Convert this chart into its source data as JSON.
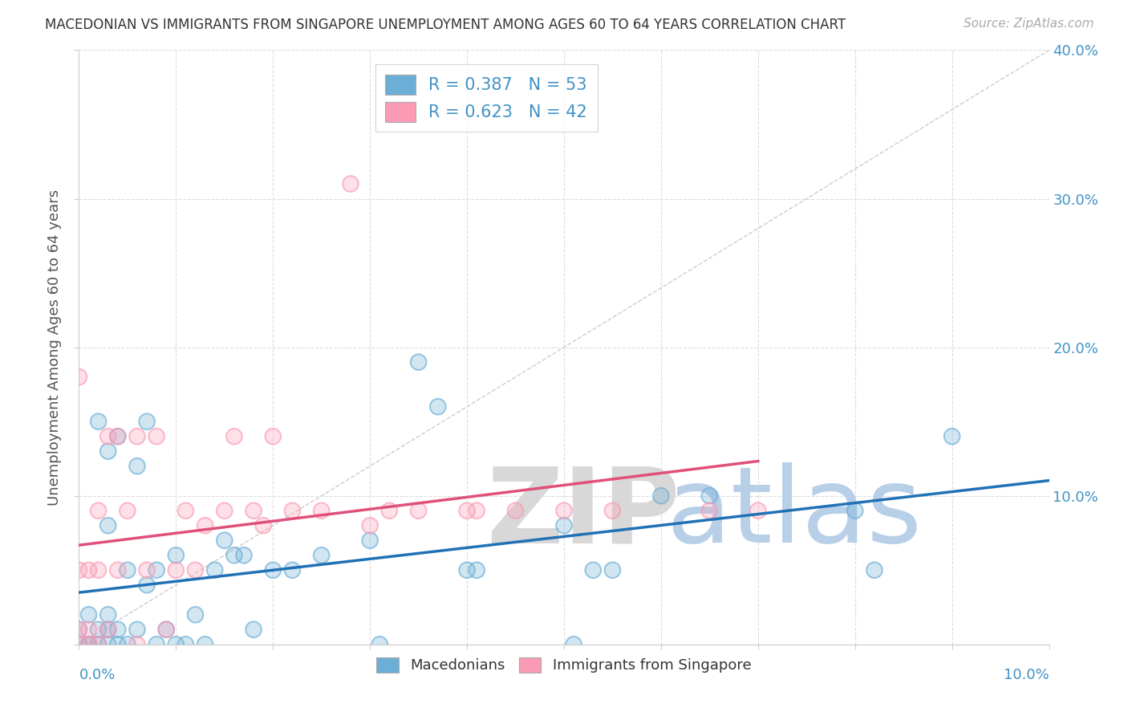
{
  "title": "MACEDONIAN VS IMMIGRANTS FROM SINGAPORE UNEMPLOYMENT AMONG AGES 60 TO 64 YEARS CORRELATION CHART",
  "source": "Source: ZipAtlas.com",
  "ylabel": "Unemployment Among Ages 60 to 64 years",
  "xlim": [
    0.0,
    0.1
  ],
  "ylim": [
    0.0,
    0.4
  ],
  "grid_color": "#dddddd",
  "blue_color": "#6baed6",
  "pink_color": "#fb9ab4",
  "blue_line_color": "#2171b5",
  "pink_line_color": "#e0507a",
  "ref_line_color": "#cccccc",
  "legend_blue_label": "R = 0.387   N = 53",
  "legend_pink_label": "R = 0.623   N = 42",
  "legend_macedonians": "Macedonians",
  "legend_immigrants": "Immigrants from Singapore",
  "macedonian_x": [
    0.0,
    0.0,
    0.001,
    0.001,
    0.001,
    0.002,
    0.002,
    0.002,
    0.003,
    0.003,
    0.003,
    0.003,
    0.003,
    0.004,
    0.004,
    0.004,
    0.005,
    0.005,
    0.006,
    0.006,
    0.007,
    0.007,
    0.008,
    0.008,
    0.009,
    0.01,
    0.01,
    0.011,
    0.012,
    0.013,
    0.014,
    0.015,
    0.016,
    0.017,
    0.018,
    0.02,
    0.022,
    0.025,
    0.03,
    0.031,
    0.035,
    0.037,
    0.04,
    0.041,
    0.05,
    0.051,
    0.053,
    0.055,
    0.06,
    0.065,
    0.08,
    0.082,
    0.09
  ],
  "macedonian_y": [
    0.0,
    0.01,
    0.0,
    0.0,
    0.02,
    0.0,
    0.01,
    0.15,
    0.0,
    0.01,
    0.02,
    0.08,
    0.13,
    0.0,
    0.01,
    0.14,
    0.0,
    0.05,
    0.01,
    0.12,
    0.04,
    0.15,
    0.0,
    0.05,
    0.01,
    0.0,
    0.06,
    0.0,
    0.02,
    0.0,
    0.05,
    0.07,
    0.06,
    0.06,
    0.01,
    0.05,
    0.05,
    0.06,
    0.07,
    0.0,
    0.19,
    0.16,
    0.05,
    0.05,
    0.08,
    0.0,
    0.05,
    0.05,
    0.1,
    0.1,
    0.09,
    0.05,
    0.14
  ],
  "singapore_x": [
    0.0,
    0.0,
    0.0,
    0.0,
    0.001,
    0.001,
    0.001,
    0.002,
    0.002,
    0.002,
    0.003,
    0.003,
    0.004,
    0.004,
    0.005,
    0.006,
    0.006,
    0.007,
    0.008,
    0.009,
    0.01,
    0.011,
    0.012,
    0.013,
    0.015,
    0.016,
    0.018,
    0.019,
    0.02,
    0.022,
    0.025,
    0.028,
    0.03,
    0.032,
    0.035,
    0.04,
    0.041,
    0.045,
    0.05,
    0.055,
    0.065,
    0.07
  ],
  "singapore_y": [
    0.0,
    0.01,
    0.05,
    0.18,
    0.0,
    0.01,
    0.05,
    0.0,
    0.05,
    0.09,
    0.01,
    0.14,
    0.05,
    0.14,
    0.09,
    0.0,
    0.14,
    0.05,
    0.14,
    0.01,
    0.05,
    0.09,
    0.05,
    0.08,
    0.09,
    0.14,
    0.09,
    0.08,
    0.14,
    0.09,
    0.09,
    0.31,
    0.08,
    0.09,
    0.09,
    0.09,
    0.09,
    0.09,
    0.09,
    0.09,
    0.09,
    0.09
  ],
  "watermark_zip_color": "#d8d8d8",
  "watermark_atlas_color": "#b8cfe8",
  "title_fontsize": 12,
  "source_fontsize": 11,
  "label_fontsize": 13,
  "tick_fontsize": 13
}
